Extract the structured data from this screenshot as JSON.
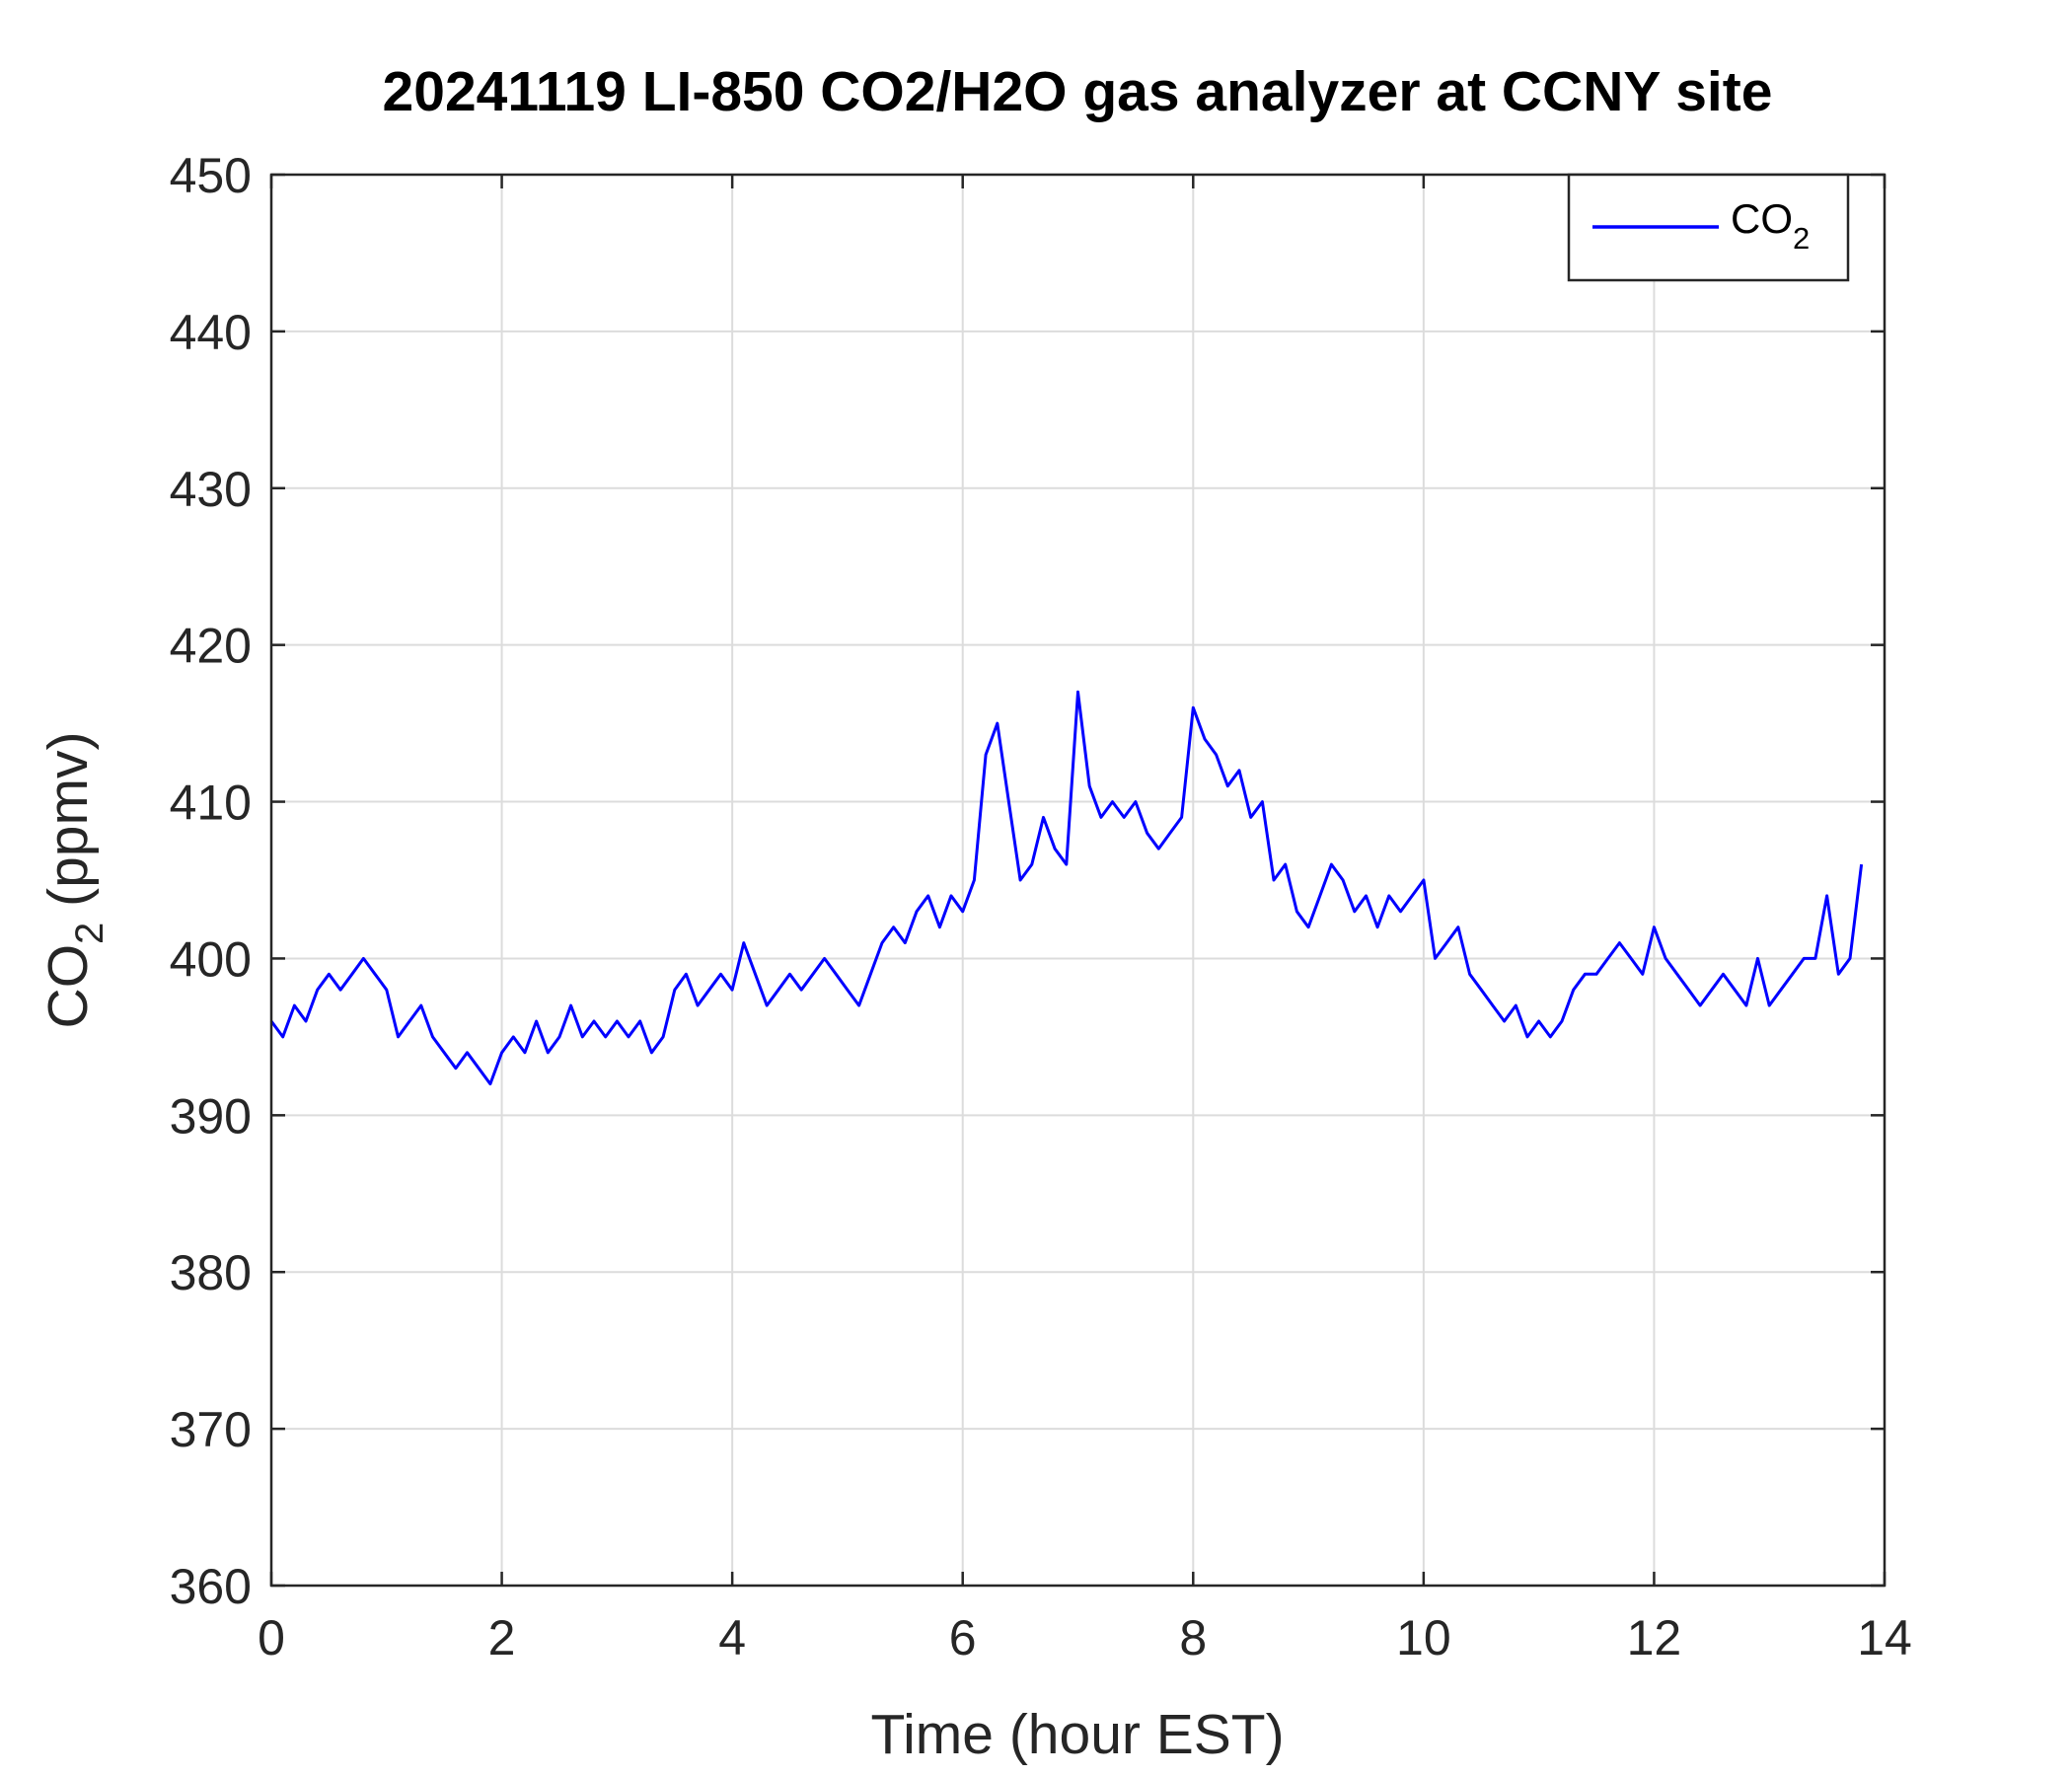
{
  "chart_data": {
    "type": "line",
    "title": "20241119 LI-850 CO2/H2O gas analyzer at CCNY site",
    "xlabel": "Time (hour EST)",
    "ylabel": {
      "base": "CO",
      "subscript": "2",
      "suffix": " (ppmv)"
    },
    "xlim": [
      0,
      14
    ],
    "ylim": [
      360,
      450
    ],
    "xticks": [
      "0",
      "2",
      "4",
      "6",
      "8",
      "10",
      "12",
      "14"
    ],
    "yticks": [
      "360",
      "370",
      "380",
      "390",
      "400",
      "410",
      "420",
      "430",
      "440",
      "450"
    ],
    "grid": true,
    "legend_position": "top-right",
    "series": [
      {
        "name": {
          "base": "CO",
          "subscript": "2"
        },
        "color": "#0000ff",
        "x": [
          0.0,
          0.1,
          0.2,
          0.3,
          0.4,
          0.5,
          0.6,
          0.7,
          0.8,
          0.9,
          1.0,
          1.1,
          1.2,
          1.3,
          1.4,
          1.5,
          1.6,
          1.7,
          1.8,
          1.9,
          2.0,
          2.1,
          2.2,
          2.3,
          2.4,
          2.5,
          2.6,
          2.7,
          2.8,
          2.9,
          3.0,
          3.1,
          3.2,
          3.3,
          3.4,
          3.5,
          3.6,
          3.7,
          3.8,
          3.9,
          4.0,
          4.1,
          4.2,
          4.3,
          4.4,
          4.5,
          4.6,
          4.7,
          4.8,
          4.9,
          5.0,
          5.1,
          5.2,
          5.3,
          5.4,
          5.5,
          5.6,
          5.7,
          5.8,
          5.9,
          6.0,
          6.1,
          6.2,
          6.3,
          6.4,
          6.5,
          6.6,
          6.7,
          6.8,
          6.9,
          7.0,
          7.1,
          7.2,
          7.3,
          7.4,
          7.5,
          7.6,
          7.7,
          7.8,
          7.9,
          8.0,
          8.1,
          8.2,
          8.3,
          8.4,
          8.5,
          8.6,
          8.7,
          8.8,
          8.9,
          9.0,
          9.1,
          9.2,
          9.3,
          9.4,
          9.5,
          9.6,
          9.7,
          9.8,
          9.9,
          10.0,
          10.1,
          10.2,
          10.3,
          10.4,
          10.5,
          10.6,
          10.7,
          10.8,
          10.9,
          11.0,
          11.1,
          11.2,
          11.3,
          11.4,
          11.5,
          11.6,
          11.7,
          11.8,
          11.9,
          12.0,
          12.1,
          12.2,
          12.3,
          12.4,
          12.5,
          12.6,
          12.7,
          12.8,
          12.9,
          13.0,
          13.1,
          13.2,
          13.3,
          13.4,
          13.5,
          13.6,
          13.7,
          13.8
        ],
        "y": [
          396,
          395,
          397,
          396,
          398,
          399,
          398,
          399,
          400,
          399,
          398,
          395,
          396,
          397,
          395,
          394,
          393,
          394,
          393,
          392,
          394,
          395,
          394,
          396,
          394,
          395,
          397,
          395,
          396,
          395,
          396,
          395,
          396,
          394,
          395,
          398,
          399,
          397,
          398,
          399,
          398,
          401,
          399,
          397,
          398,
          399,
          398,
          399,
          400,
          399,
          398,
          397,
          399,
          401,
          402,
          401,
          403,
          404,
          402,
          404,
          403,
          405,
          413,
          415,
          410,
          405,
          406,
          409,
          407,
          406,
          417,
          411,
          409,
          410,
          409,
          410,
          408,
          407,
          408,
          409,
          416,
          414,
          413,
          411,
          412,
          409,
          410,
          405,
          406,
          403,
          402,
          404,
          406,
          405,
          403,
          404,
          402,
          404,
          403,
          404,
          405,
          400,
          401,
          402,
          399,
          398,
          397,
          396,
          397,
          395,
          396,
          395,
          396,
          398,
          399,
          399,
          400,
          401,
          400,
          399,
          402,
          400,
          399,
          398,
          397,
          398,
          399,
          398,
          397,
          400,
          397,
          398,
          399,
          400,
          400,
          404,
          399,
          400,
          406
        ]
      }
    ]
  }
}
